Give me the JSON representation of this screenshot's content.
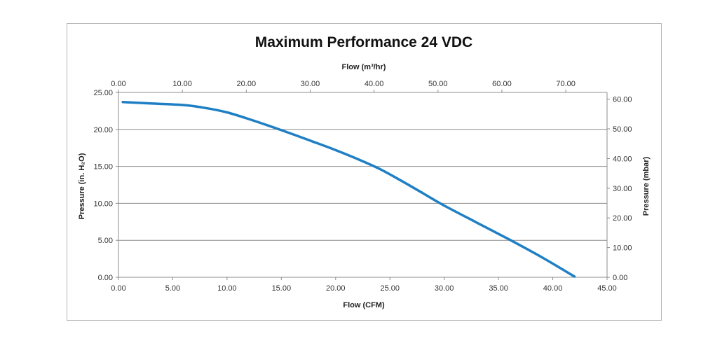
{
  "chart_data": {
    "type": "line",
    "title": "Maximum Performance 24 VDC",
    "xlabel": "Flow (CFM)",
    "ylabel": "Pressure (in. H₂O)",
    "x2label": "Flow (m³/hr)",
    "y2label": "Pressure (mbar)",
    "xlim": [
      0,
      45
    ],
    "ylim": [
      0,
      25
    ],
    "x2lim": [
      0,
      76.46
    ],
    "y2lim": [
      0,
      62.27
    ],
    "x_ticks": [
      "0.00",
      "5.00",
      "10.00",
      "15.00",
      "20.00",
      "25.00",
      "30.00",
      "35.00",
      "40.00",
      "45.00"
    ],
    "y_ticks": [
      "0.00",
      "5.00",
      "10.00",
      "15.00",
      "20.00",
      "25.00"
    ],
    "x2_ticks": [
      "0.00",
      "10.00",
      "20.00",
      "30.00",
      "40.00",
      "50.00",
      "60.00",
      "70.00"
    ],
    "y2_ticks": [
      "0.00",
      "10.00",
      "20.00",
      "30.00",
      "40.00",
      "50.00",
      "60.00"
    ],
    "grid": "horizontal",
    "series": [
      {
        "name": "Maximum Performance 24 VDC",
        "color": "#1f7fc4",
        "x": [
          0.4,
          3,
          6,
          8,
          10,
          12,
          15,
          18,
          20,
          22,
          24,
          26,
          28,
          30,
          33,
          36,
          39,
          42
        ],
        "y": [
          23.7,
          23.5,
          23.3,
          22.9,
          22.3,
          21.4,
          19.9,
          18.3,
          17.2,
          16.0,
          14.7,
          13.1,
          11.4,
          9.7,
          7.4,
          5.1,
          2.7,
          0.1
        ]
      }
    ]
  }
}
